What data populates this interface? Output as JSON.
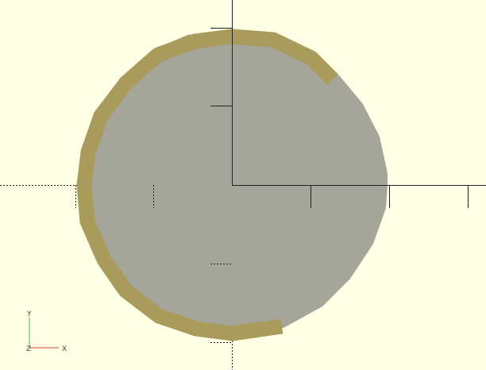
{
  "viewer": {
    "background_color": "#ffffe5",
    "model": {
      "body_color": "#a5a59a",
      "highlight_color": "#a89b5c"
    },
    "axes": {
      "color": "#222222",
      "labels": {
        "x": "X",
        "y": "Y",
        "z": "Z"
      },
      "indicator_colors": {
        "x": "#e04040",
        "y": "#40c040",
        "z": "#4040e0"
      }
    }
  }
}
